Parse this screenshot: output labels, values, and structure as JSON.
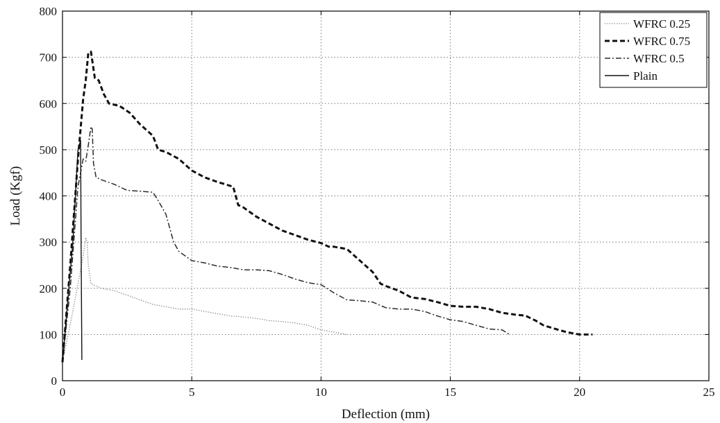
{
  "chart_data": {
    "type": "line",
    "title": "",
    "xlabel": "Deflection (mm)",
    "ylabel": "Load (Kgf)",
    "xlim": [
      0,
      25
    ],
    "ylim": [
      0,
      800
    ],
    "xticks": [
      0,
      5,
      10,
      15,
      20,
      25
    ],
    "yticks": [
      0,
      100,
      200,
      300,
      400,
      500,
      600,
      700,
      800
    ],
    "grid": true,
    "legend_position": "top-right",
    "series": [
      {
        "name": "WFRC 0.25",
        "style": "dotted",
        "color": "#7a7a7a",
        "x": [
          0,
          0.4,
          0.8,
          0.9,
          0.95,
          1.0,
          1.1,
          1.5,
          2.0,
          2.5,
          3.0,
          3.5,
          4.0,
          4.5,
          5.0,
          5.5,
          6.0,
          6.5,
          7.0,
          7.5,
          8.0,
          8.5,
          9.0,
          9.5,
          10.0,
          10.5,
          11.0
        ],
        "y": [
          40,
          150,
          270,
          310,
          300,
          250,
          210,
          200,
          195,
          185,
          175,
          165,
          160,
          155,
          155,
          150,
          145,
          140,
          138,
          135,
          130,
          128,
          125,
          120,
          110,
          105,
          100
        ]
      },
      {
        "name": "WFRC 0.75",
        "style": "dashed",
        "color": "#111111",
        "x": [
          0,
          0.3,
          0.6,
          0.8,
          0.9,
          1.0,
          1.1,
          1.25,
          1.4,
          1.6,
          1.8,
          2.2,
          2.6,
          3.0,
          3.5,
          3.7,
          4.0,
          4.5,
          5.0,
          5.5,
          6.0,
          6.6,
          6.8,
          7.0,
          7.5,
          8.0,
          8.5,
          9.0,
          9.5,
          10.0,
          10.3,
          10.5,
          11.0,
          11.5,
          12.0,
          12.3,
          12.5,
          13.0,
          13.5,
          14.0,
          14.5,
          15.0,
          15.5,
          16.0,
          16.5,
          17.0,
          17.5,
          17.9,
          18.3,
          18.6,
          19.0,
          19.5,
          20.0,
          20.5
        ],
        "y": [
          40,
          250,
          480,
          610,
          650,
          710,
          712,
          655,
          650,
          620,
          600,
          595,
          580,
          555,
          530,
          500,
          495,
          480,
          455,
          440,
          430,
          420,
          380,
          375,
          355,
          340,
          325,
          315,
          305,
          298,
          290,
          290,
          285,
          260,
          235,
          210,
          205,
          195,
          180,
          177,
          170,
          162,
          160,
          160,
          155,
          147,
          143,
          141,
          130,
          120,
          113,
          105,
          100,
          100
        ]
      },
      {
        "name": "WFRC 0.5",
        "style": "dashdot",
        "color": "#2a2a2a",
        "x": [
          0,
          0.3,
          0.6,
          0.8,
          0.9,
          1.0,
          1.1,
          1.15,
          1.2,
          1.3,
          1.5,
          2.0,
          2.5,
          3.0,
          3.5,
          3.7,
          4.0,
          4.3,
          4.5,
          5.0,
          5.5,
          6.0,
          6.5,
          7.0,
          7.5,
          8.0,
          8.5,
          9.0,
          9.5,
          10.0,
          10.5,
          11.0,
          11.5,
          12.0,
          12.5,
          13.0,
          13.5,
          14.0,
          14.5,
          15.0,
          15.5,
          16.0,
          16.5,
          17.0,
          17.3
        ],
        "y": [
          40,
          200,
          420,
          480,
          475,
          510,
          550,
          545,
          470,
          440,
          435,
          425,
          412,
          410,
          408,
          390,
          360,
          300,
          280,
          260,
          255,
          248,
          245,
          240,
          240,
          238,
          230,
          220,
          212,
          208,
          190,
          175,
          173,
          170,
          158,
          155,
          155,
          150,
          140,
          132,
          128,
          120,
          112,
          110,
          100
        ]
      },
      {
        "name": "Plain",
        "style": "solid",
        "color": "#111111",
        "x": [
          0,
          0.4,
          0.6,
          0.7,
          0.72,
          0.75
        ],
        "y": [
          40,
          300,
          500,
          520,
          300,
          45
        ]
      }
    ]
  }
}
